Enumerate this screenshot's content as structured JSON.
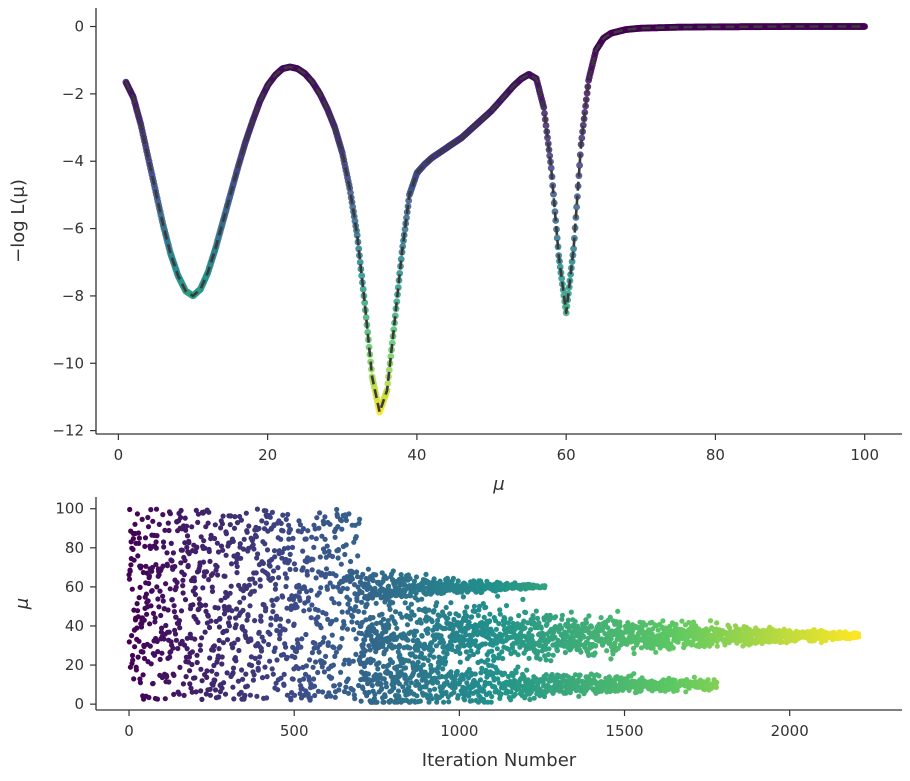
{
  "chart_data": [
    {
      "type": "line",
      "xlabel": "μ",
      "ylabel": "−log L(μ)",
      "xlim": [
        -3,
        105
      ],
      "ylim": [
        -12.1,
        0.55
      ],
      "xticks": [
        0,
        20,
        40,
        60,
        80,
        100
      ],
      "yticks": [
        0,
        -2,
        -4,
        -6,
        -8,
        -10,
        -12
      ],
      "grid": false,
      "legend": "none",
      "line_style": "dashed",
      "line_color": "#3a3a3a",
      "colormap": [
        "#440154",
        "#3b528b",
        "#21918c",
        "#5ec962",
        "#fde725"
      ],
      "minima": [
        {
          "mu": 10,
          "value": -8.0
        },
        {
          "mu": 35,
          "value": -11.45
        },
        {
          "mu": 60,
          "value": -8.5
        }
      ],
      "curve_points": [
        [
          1,
          -1.65
        ],
        [
          2,
          -2.1
        ],
        [
          3,
          -2.9
        ],
        [
          4,
          -3.9
        ],
        [
          5,
          -4.9
        ],
        [
          6,
          -5.9
        ],
        [
          7,
          -6.75
        ],
        [
          8,
          -7.4
        ],
        [
          9,
          -7.85
        ],
        [
          10,
          -8.0
        ],
        [
          11,
          -7.8
        ],
        [
          12,
          -7.3
        ],
        [
          13,
          -6.6
        ],
        [
          14,
          -5.8
        ],
        [
          15,
          -5.0
        ],
        [
          16,
          -4.2
        ],
        [
          17,
          -3.45
        ],
        [
          18,
          -2.8
        ],
        [
          19,
          -2.2
        ],
        [
          20,
          -1.75
        ],
        [
          21,
          -1.45
        ],
        [
          22,
          -1.25
        ],
        [
          23,
          -1.2
        ],
        [
          24,
          -1.25
        ],
        [
          25,
          -1.4
        ],
        [
          26,
          -1.65
        ],
        [
          27,
          -2.0
        ],
        [
          28,
          -2.45
        ],
        [
          29,
          -3.0
        ],
        [
          30,
          -3.75
        ],
        [
          31,
          -4.8
        ],
        [
          32,
          -6.2
        ],
        [
          33,
          -8.2
        ],
        [
          34,
          -10.4
        ],
        [
          35,
          -11.45
        ],
        [
          36,
          -10.8
        ],
        [
          37,
          -8.8
        ],
        [
          38,
          -6.7
        ],
        [
          39,
          -5.0
        ],
        [
          40,
          -4.35
        ],
        [
          41,
          -4.1
        ],
        [
          42,
          -3.9
        ],
        [
          43,
          -3.75
        ],
        [
          44,
          -3.6
        ],
        [
          45,
          -3.45
        ],
        [
          46,
          -3.3
        ],
        [
          47,
          -3.1
        ],
        [
          48,
          -2.9
        ],
        [
          49,
          -2.7
        ],
        [
          50,
          -2.5
        ],
        [
          51,
          -2.25
        ],
        [
          52,
          -2.0
        ],
        [
          53,
          -1.75
        ],
        [
          54,
          -1.55
        ],
        [
          55,
          -1.42
        ],
        [
          56,
          -1.55
        ],
        [
          57,
          -2.4
        ],
        [
          58,
          -4.2
        ],
        [
          59,
          -6.8
        ],
        [
          60,
          -8.5
        ],
        [
          61,
          -6.6
        ],
        [
          62,
          -3.5
        ],
        [
          63,
          -1.6
        ],
        [
          64,
          -0.7
        ],
        [
          65,
          -0.35
        ],
        [
          66,
          -0.2
        ],
        [
          68,
          -0.09
        ],
        [
          70,
          -0.05
        ],
        [
          75,
          -0.02
        ],
        [
          80,
          -0.01
        ],
        [
          90,
          0.0
        ],
        [
          100,
          0.0
        ]
      ]
    },
    {
      "type": "scatter",
      "xlabel": "Iteration Number",
      "ylabel": "μ",
      "xlim": [
        -100,
        2340
      ],
      "ylim": [
        -3,
        106
      ],
      "xticks": [
        0,
        500,
        1000,
        1500,
        2000
      ],
      "yticks": [
        0,
        20,
        40,
        60,
        80,
        100
      ],
      "grid": false,
      "legend": "none",
      "colormap": [
        "#440154",
        "#3b528b",
        "#21918c",
        "#5ec962",
        "#fde725"
      ],
      "phases": [
        {
          "from": 0,
          "to": 700,
          "distribution": "uniform",
          "range": [
            2,
            100
          ]
        },
        {
          "from": 700,
          "to": 1260,
          "center": 60,
          "spread_start": 5,
          "spread_end": 0.4
        },
        {
          "from": 700,
          "to": 1780,
          "center": 10,
          "spread_start": 9,
          "spread_end": 1
        },
        {
          "from": 700,
          "to": 2210,
          "center": 35,
          "spread_start": 13,
          "spread_end": 0.6
        }
      ]
    }
  ]
}
